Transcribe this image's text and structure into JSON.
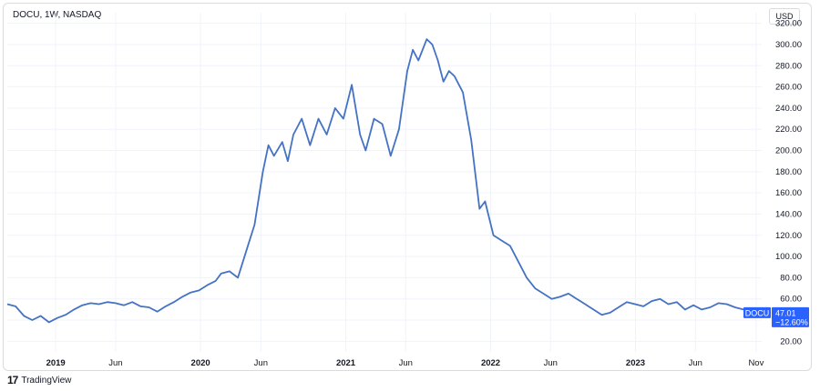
{
  "header": {
    "symbol_title": "DOCU, 1W, NASDAQ",
    "currency": "USD"
  },
  "footer": {
    "brand_icon": "tradingview-logo-icon",
    "brand_name": "TradingView"
  },
  "colors": {
    "line": "#4472c4",
    "badge": "#2962ff",
    "grid": "#f0f3fa"
  },
  "chart_data": {
    "type": "line",
    "title": "DOCU, 1W, NASDAQ",
    "xlabel": "",
    "ylabel": "USD",
    "ylim": [
      10,
      330
    ],
    "xlim": [
      "2018-09-01",
      "2023-11-15"
    ],
    "y_ticks": [
      "20.00",
      "40.00",
      "60.00",
      "80.00",
      "100.00",
      "120.00",
      "140.00",
      "160.00",
      "180.00",
      "200.00",
      "220.00",
      "240.00",
      "260.00",
      "280.00",
      "300.00",
      "320.00"
    ],
    "x_ticks": [
      {
        "label": "2019",
        "date": "2019-01-01",
        "bold": true
      },
      {
        "label": "Jun",
        "date": "2019-06-01",
        "bold": false
      },
      {
        "label": "2020",
        "date": "2020-01-01",
        "bold": true
      },
      {
        "label": "Jun",
        "date": "2020-06-01",
        "bold": false
      },
      {
        "label": "2021",
        "date": "2021-01-01",
        "bold": true
      },
      {
        "label": "Jun",
        "date": "2021-06-01",
        "bold": false
      },
      {
        "label": "2022",
        "date": "2022-01-01",
        "bold": true
      },
      {
        "label": "Jun",
        "date": "2022-06-01",
        "bold": false
      },
      {
        "label": "2023",
        "date": "2023-01-01",
        "bold": true
      },
      {
        "label": "Jun",
        "date": "2023-06-01",
        "bold": false
      },
      {
        "label": "Nov",
        "date": "2023-11-01",
        "bold": false
      }
    ],
    "grid": true,
    "series": [
      {
        "name": "DOCU",
        "x": [
          "2018-09-01",
          "2018-09-22",
          "2018-10-13",
          "2018-11-03",
          "2018-11-24",
          "2018-12-15",
          "2019-01-05",
          "2019-01-26",
          "2019-02-16",
          "2019-03-09",
          "2019-03-30",
          "2019-04-20",
          "2019-05-11",
          "2019-06-01",
          "2019-06-22",
          "2019-07-13",
          "2019-08-03",
          "2019-08-24",
          "2019-09-14",
          "2019-10-05",
          "2019-10-26",
          "2019-11-16",
          "2019-12-07",
          "2019-12-28",
          "2020-01-18",
          "2020-02-08",
          "2020-02-22",
          "2020-03-14",
          "2020-04-04",
          "2020-04-25",
          "2020-05-16",
          "2020-06-06",
          "2020-06-20",
          "2020-07-04",
          "2020-07-25",
          "2020-08-08",
          "2020-08-22",
          "2020-09-12",
          "2020-10-03",
          "2020-10-24",
          "2020-11-14",
          "2020-12-05",
          "2020-12-26",
          "2021-01-16",
          "2021-02-06",
          "2021-02-20",
          "2021-03-13",
          "2021-04-03",
          "2021-04-24",
          "2021-05-15",
          "2021-06-05",
          "2021-06-19",
          "2021-07-03",
          "2021-07-24",
          "2021-08-07",
          "2021-08-21",
          "2021-09-04",
          "2021-09-18",
          "2021-10-02",
          "2021-10-23",
          "2021-11-13",
          "2021-12-04",
          "2021-12-18",
          "2022-01-08",
          "2022-01-29",
          "2022-02-19",
          "2022-03-12",
          "2022-04-02",
          "2022-04-23",
          "2022-05-14",
          "2022-06-04",
          "2022-06-25",
          "2022-07-16",
          "2022-08-06",
          "2022-08-27",
          "2022-09-17",
          "2022-10-08",
          "2022-10-29",
          "2022-11-19",
          "2022-12-10",
          "2022-12-31",
          "2023-01-21",
          "2023-02-11",
          "2023-03-04",
          "2023-03-25",
          "2023-04-15",
          "2023-05-06",
          "2023-05-27",
          "2023-06-17",
          "2023-07-08",
          "2023-07-29",
          "2023-08-19",
          "2023-09-09",
          "2023-09-30",
          "2023-10-21",
          "2023-11-04"
        ],
        "values": [
          55,
          53,
          44,
          40,
          44,
          38,
          42,
          45,
          50,
          54,
          56,
          55,
          57,
          56,
          54,
          57,
          53,
          52,
          48,
          53,
          57,
          62,
          66,
          68,
          73,
          77,
          84,
          86,
          80,
          105,
          130,
          180,
          205,
          195,
          208,
          190,
          215,
          230,
          205,
          230,
          215,
          240,
          230,
          262,
          215,
          200,
          230,
          225,
          195,
          220,
          275,
          295,
          285,
          305,
          300,
          285,
          265,
          275,
          270,
          255,
          210,
          145,
          152,
          120,
          115,
          110,
          95,
          80,
          70,
          65,
          60,
          62,
          65,
          60,
          55,
          50,
          45,
          47,
          52,
          57,
          55,
          53,
          58,
          60,
          55,
          57,
          50,
          54,
          50,
          52,
          56,
          55,
          52,
          50,
          48,
          47.01
        ]
      }
    ],
    "last_value_badge": {
      "symbol": "DOCU",
      "value": "47.01",
      "change": "−12.60%"
    }
  }
}
